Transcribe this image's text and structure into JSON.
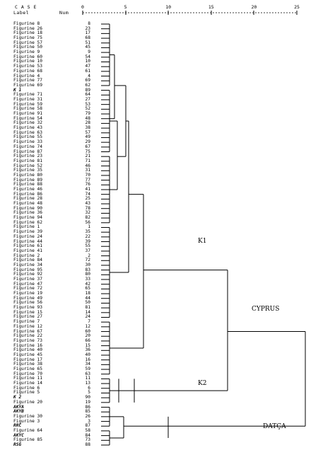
{
  "header": {
    "case_label": "C A S E",
    "label_col": "Label",
    "num_col": "Num",
    "ticks": [
      "0",
      "5",
      "10",
      "15",
      "20",
      "25"
    ]
  },
  "rows": [
    {
      "label": "Figurine 8",
      "num": "8"
    },
    {
      "label": "Figurine 26",
      "num": "23"
    },
    {
      "label": "Figurine 18",
      "num": "17"
    },
    {
      "label": "Figurine 75",
      "num": "68"
    },
    {
      "label": "Figurine 57",
      "num": "51"
    },
    {
      "label": "Figurine 50",
      "num": "45"
    },
    {
      "label": "Figurine 9",
      "num": "9"
    },
    {
      "label": "Figurine 60",
      "num": "54"
    },
    {
      "label": "Figurine 10",
      "num": "10"
    },
    {
      "label": "Figurine 53",
      "num": "47"
    },
    {
      "label": "Figurine 68",
      "num": "61"
    },
    {
      "label": "Figurine 4",
      "num": "4"
    },
    {
      "label": "Figurine 77",
      "num": "69"
    },
    {
      "label": "Figurine 69",
      "num": "62"
    },
    {
      "label": "K 1",
      "num": "89",
      "bold": true
    },
    {
      "label": "Figurine 71",
      "num": "64"
    },
    {
      "label": "Figurine 31",
      "num": "27"
    },
    {
      "label": "Figurine 59",
      "num": "53"
    },
    {
      "label": "Figurine 58",
      "num": "52"
    },
    {
      "label": "Figurine 91",
      "num": "79"
    },
    {
      "label": "Figurine 54",
      "num": "48"
    },
    {
      "label": "Figurine 32",
      "num": "28"
    },
    {
      "label": "Figurine 43",
      "num": "38"
    },
    {
      "label": "Figurine 63",
      "num": "57"
    },
    {
      "label": "Figurine 55",
      "num": "49"
    },
    {
      "label": "Figurine 33",
      "num": "29"
    },
    {
      "label": "Figurine 74",
      "num": "67"
    },
    {
      "label": "Figurine 87",
      "num": "75"
    },
    {
      "label": "Figurine 23",
      "num": "21"
    },
    {
      "label": "Figurine 81",
      "num": "71"
    },
    {
      "label": "Figurine 52",
      "num": "46"
    },
    {
      "label": "Figurine 35",
      "num": "31"
    },
    {
      "label": "Figurine 80",
      "num": "70"
    },
    {
      "label": "Figurine 89",
      "num": "77"
    },
    {
      "label": "Figurine 88",
      "num": "76"
    },
    {
      "label": "Figurine 46",
      "num": "41"
    },
    {
      "label": "Figurine 86",
      "num": "74"
    },
    {
      "label": "Figurine 28",
      "num": "25"
    },
    {
      "label": "Figurine 48",
      "num": "43"
    },
    {
      "label": "Figurine 90",
      "num": "78"
    },
    {
      "label": "Figurine 36",
      "num": "32"
    },
    {
      "label": "Figurine 94",
      "num": "82"
    },
    {
      "label": "Figurine 62",
      "num": "56"
    },
    {
      "label": "Figurine 1",
      "num": "1"
    },
    {
      "label": "Figurine 39",
      "num": "35"
    },
    {
      "label": "Figurine 24",
      "num": "22"
    },
    {
      "label": "Figurine 44",
      "num": "39"
    },
    {
      "label": "Figurine 61",
      "num": "55"
    },
    {
      "label": "Figurine 41",
      "num": "37"
    },
    {
      "label": "Figurine 2",
      "num": "2"
    },
    {
      "label": "Figurine 84",
      "num": "72"
    },
    {
      "label": "Figurine 34",
      "num": "30"
    },
    {
      "label": "Figurine 95",
      "num": "83"
    },
    {
      "label": "Figurine 92",
      "num": "80"
    },
    {
      "label": "Figurine 37",
      "num": "33"
    },
    {
      "label": "Figurine 47",
      "num": "42"
    },
    {
      "label": "Figurine 72",
      "num": "65"
    },
    {
      "label": "Figurine 19",
      "num": "18"
    },
    {
      "label": "Figurine 49",
      "num": "44"
    },
    {
      "label": "Figurine 56",
      "num": "50"
    },
    {
      "label": "Figurine 93",
      "num": "81"
    },
    {
      "label": "Figurine 15",
      "num": "14"
    },
    {
      "label": "Figurine 27",
      "num": "24"
    },
    {
      "label": "Figurine 7",
      "num": "7"
    },
    {
      "label": "Figurine 12",
      "num": "12"
    },
    {
      "label": "Figurine 67",
      "num": "60"
    },
    {
      "label": "Figurine 22",
      "num": "20"
    },
    {
      "label": "Figurine 73",
      "num": "66"
    },
    {
      "label": "Figurine 16",
      "num": "15"
    },
    {
      "label": "Figurine 40",
      "num": "36"
    },
    {
      "label": "Figurine 45",
      "num": "40"
    },
    {
      "label": "Figurine 17",
      "num": "16"
    },
    {
      "label": "Figurine 38",
      "num": "34"
    },
    {
      "label": "Figurine 65",
      "num": "59"
    },
    {
      "label": "Figurine 70",
      "num": "63"
    },
    {
      "label": "Figurine 11",
      "num": "11"
    },
    {
      "label": "Figurine 14",
      "num": "13"
    },
    {
      "label": "Figurine 6",
      "num": "6"
    },
    {
      "label": "Figurine 5",
      "num": "5"
    },
    {
      "label": "K 2",
      "num": "90",
      "bold": true
    },
    {
      "label": "Figurine 20",
      "num": "19"
    },
    {
      "label": "AKYA",
      "num": "86",
      "bold": true
    },
    {
      "label": "AKYB",
      "num": "85",
      "bold": true
    },
    {
      "label": "Figurine 30",
      "num": "26"
    },
    {
      "label": "Figurine 3",
      "num": "3"
    },
    {
      "label": "RRC",
      "num": "87",
      "bold": true
    },
    {
      "label": "Figurine 64",
      "num": "58"
    },
    {
      "label": "AKYC",
      "num": "84",
      "bold": true
    },
    {
      "label": "Figurine 85",
      "num": "73"
    },
    {
      "label": "RSG",
      "num": "88",
      "bold": true
    }
  ],
  "cluster_labels": {
    "k1": "K1",
    "k2": "K2",
    "cyprus": "CYPRUS",
    "datca": "DATÇA"
  }
}
